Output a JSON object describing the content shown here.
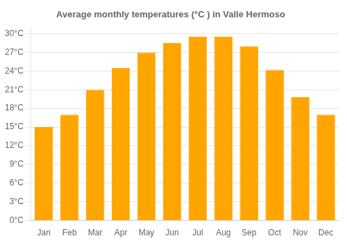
{
  "chart_data": {
    "type": "bar",
    "title": "Average monthly temperatures (°C ) in Valle Hermoso",
    "categories": [
      "Jan",
      "Feb",
      "Mar",
      "Apr",
      "May",
      "Jun",
      "Jul",
      "Aug",
      "Sep",
      "Oct",
      "Nov",
      "Dec"
    ],
    "values": [
      15,
      17,
      21,
      24.5,
      27,
      28.5,
      29.5,
      29.5,
      28,
      24.2,
      19.8,
      17
    ],
    "color": "#FFA500",
    "ylim": [
      0,
      31
    ],
    "yticks": [
      {
        "value": 0,
        "label": "0°C"
      },
      {
        "value": 3,
        "label": "3°C"
      },
      {
        "value": 6,
        "label": "6°C"
      },
      {
        "value": 9,
        "label": "9°C"
      },
      {
        "value": 12,
        "label": "12°C"
      },
      {
        "value": 15,
        "label": "15°C"
      },
      {
        "value": 18,
        "label": "18°C"
      },
      {
        "value": 21,
        "label": "21°C"
      },
      {
        "value": 24,
        "label": "24°C"
      },
      {
        "value": 27,
        "label": "27°C"
      },
      {
        "value": 30,
        "label": "30°C"
      }
    ],
    "grid": true
  }
}
